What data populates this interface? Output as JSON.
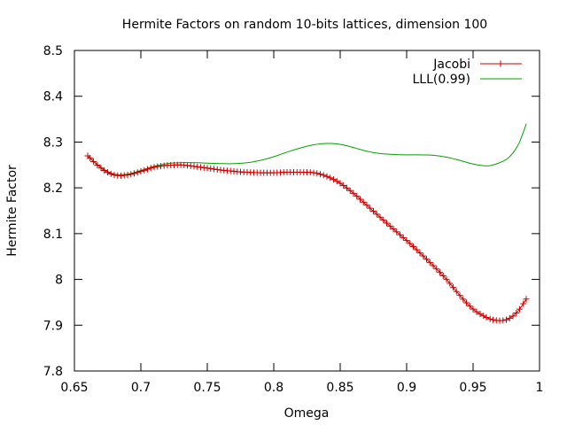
{
  "chart_data": {
    "type": "line",
    "title": "Hermite Factors on random 10-bits lattices, dimension 100",
    "xlabel": "Omega",
    "ylabel": "Hermite Factor",
    "xlim": [
      0.65,
      1.0
    ],
    "ylim": [
      7.8,
      8.5
    ],
    "xticks": [
      0.65,
      0.7,
      0.75,
      0.8,
      0.85,
      0.9,
      0.95,
      1.0
    ],
    "xtick_labels": [
      "0.65",
      "0.7",
      "0.75",
      "0.8",
      "0.85",
      "0.9",
      "0.95",
      "1"
    ],
    "yticks": [
      7.8,
      7.9,
      8.0,
      8.1,
      8.2,
      8.3,
      8.4,
      8.5
    ],
    "ytick_labels": [
      "7.8",
      "7.9",
      "8",
      "8.1",
      "8.2",
      "8.3",
      "8.4",
      "8.5"
    ],
    "grid": false,
    "legend_position": "top-right",
    "series": [
      {
        "name": "Jacobi",
        "color": "#cc0000",
        "marker": "plus",
        "x": [
          0.66,
          0.67,
          0.68,
          0.69,
          0.7,
          0.71,
          0.72,
          0.73,
          0.74,
          0.75,
          0.76,
          0.77,
          0.78,
          0.79,
          0.8,
          0.81,
          0.82,
          0.83,
          0.84,
          0.85,
          0.86,
          0.87,
          0.88,
          0.89,
          0.9,
          0.91,
          0.92,
          0.93,
          0.94,
          0.95,
          0.96,
          0.965,
          0.97,
          0.975,
          0.98,
          0.985,
          0.99
        ],
        "y": [
          8.27,
          8.243,
          8.228,
          8.228,
          8.236,
          8.245,
          8.249,
          8.25,
          8.247,
          8.243,
          8.239,
          8.236,
          8.234,
          8.233,
          8.233,
          8.234,
          8.234,
          8.233,
          8.225,
          8.21,
          8.188,
          8.162,
          8.136,
          8.11,
          8.085,
          8.058,
          8.03,
          8.0,
          7.965,
          7.935,
          7.917,
          7.912,
          7.91,
          7.912,
          7.92,
          7.935,
          7.957
        ]
      },
      {
        "name": "LLL(0.99)",
        "color": "#00a000",
        "marker": "none",
        "x": [
          0.66,
          0.67,
          0.68,
          0.69,
          0.7,
          0.71,
          0.72,
          0.73,
          0.74,
          0.75,
          0.76,
          0.77,
          0.78,
          0.79,
          0.8,
          0.81,
          0.82,
          0.83,
          0.84,
          0.85,
          0.86,
          0.87,
          0.88,
          0.89,
          0.9,
          0.91,
          0.92,
          0.93,
          0.94,
          0.95,
          0.96,
          0.965,
          0.97,
          0.975,
          0.98,
          0.985,
          0.99
        ],
        "y": [
          8.27,
          8.245,
          8.23,
          8.23,
          8.238,
          8.247,
          8.253,
          8.255,
          8.255,
          8.254,
          8.253,
          8.253,
          8.255,
          8.26,
          8.268,
          8.278,
          8.287,
          8.294,
          8.297,
          8.295,
          8.288,
          8.28,
          8.275,
          8.273,
          8.272,
          8.272,
          8.271,
          8.267,
          8.26,
          8.252,
          8.248,
          8.25,
          8.255,
          8.262,
          8.276,
          8.3,
          8.34
        ]
      }
    ]
  }
}
